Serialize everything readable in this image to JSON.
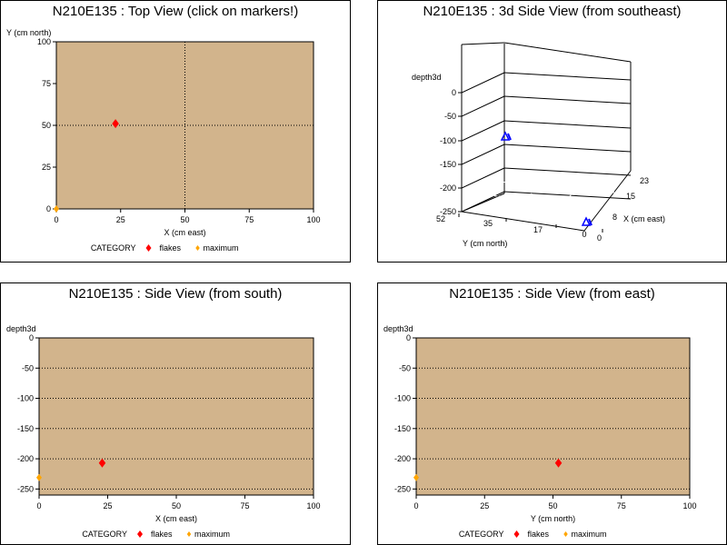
{
  "colors": {
    "plot_bg": "#d2b48c",
    "flakes": "#ff0000",
    "maximum": "#ffa500",
    "marker3d": "#0000ff"
  },
  "panels": {
    "top": {
      "title": "N210E135 : Top View (click on markers!)"
    },
    "side3d": {
      "title": "N210E135 : 3d Side View (from southeast)"
    },
    "south": {
      "title": "N210E135 : Side View (from south)"
    },
    "east": {
      "title": "N210E135 : Side View (from east)"
    }
  },
  "legend": {
    "title": "CATEGORY",
    "items": [
      "flakes",
      "maximum"
    ]
  },
  "chart_data": [
    {
      "type": "scatter",
      "title": "N210E135 : Top View (click on markers!)",
      "xlabel": "X (cm east)",
      "ylabel": "Y (cm north)",
      "xlim": [
        0,
        100
      ],
      "ylim": [
        0,
        100
      ],
      "xticks": [
        "0",
        "25",
        "50",
        "75",
        "100"
      ],
      "yticks": [
        "0",
        "25",
        "50",
        "75",
        "100"
      ],
      "series": [
        {
          "name": "flakes",
          "points": [
            [
              23,
              51
            ]
          ]
        },
        {
          "name": "maximum",
          "points": [
            [
              0,
              0
            ]
          ]
        }
      ],
      "legend_position": "bottom",
      "reference_lines": {
        "x": 50,
        "y": 50
      }
    },
    {
      "type": "scatter",
      "title": "N210E135 : 3d Side View (from southeast)",
      "zlabel": "depth3d",
      "xlabel": "X (cm east)",
      "ylabel": "Y (cm north)",
      "zticks": [
        "0",
        "-50",
        "-100",
        "-150",
        "-200",
        "-250"
      ],
      "xticks": [
        "0",
        "8",
        "15",
        "23"
      ],
      "yticks": [
        "52",
        "35",
        "17",
        "0"
      ],
      "points": [
        {
          "x": 23,
          "y": 52,
          "z": -100
        },
        {
          "x": 23,
          "y": 0,
          "z": -205
        }
      ]
    },
    {
      "type": "scatter",
      "title": "N210E135 : Side View (from south)",
      "xlabel": "X (cm east)",
      "ylabel": "depth3d",
      "xlim": [
        0,
        100
      ],
      "ylim": [
        -260,
        0
      ],
      "xticks": [
        "0",
        "25",
        "50",
        "75",
        "100"
      ],
      "yticks": [
        "0",
        "-50",
        "-100",
        "-150",
        "-200",
        "-250"
      ],
      "series": [
        {
          "name": "flakes",
          "points": [
            [
              23,
              -207
            ]
          ]
        },
        {
          "name": "maximum",
          "points": [
            [
              0,
              -231
            ]
          ]
        }
      ],
      "legend_position": "bottom"
    },
    {
      "type": "scatter",
      "title": "N210E135 : Side View (from east)",
      "xlabel": "Y (cm north)",
      "ylabel": "depth3d",
      "xlim": [
        0,
        100
      ],
      "ylim": [
        -260,
        0
      ],
      "xticks": [
        "0",
        "25",
        "50",
        "75",
        "100"
      ],
      "yticks": [
        "0",
        "-50",
        "-100",
        "-150",
        "-200",
        "-250"
      ],
      "series": [
        {
          "name": "flakes",
          "points": [
            [
              52,
              -207
            ]
          ]
        },
        {
          "name": "maximum",
          "points": [
            [
              0,
              -231
            ]
          ]
        }
      ],
      "legend_position": "bottom"
    }
  ]
}
